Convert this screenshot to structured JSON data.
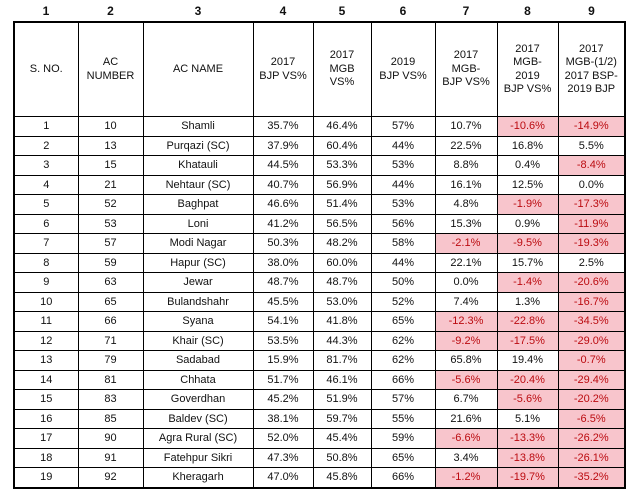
{
  "colors": {
    "highlight_fill": "#F8C5CC",
    "highlight_text": "#BB0B10",
    "grid_line": "#000000",
    "text": "#111111"
  },
  "chart_data": {
    "type": "table",
    "title": "",
    "column_numbers": [
      "1",
      "2",
      "3",
      "4",
      "5",
      "6",
      "7",
      "8",
      "9"
    ],
    "columns": [
      "S. NO.",
      "AC\nNUMBER",
      "AC NAME",
      "2017\nBJP VS%",
      "2017\nMGB\nVS%",
      "2019\nBJP VS%",
      "2017\nMGB-\nBJP VS%",
      "2017\nMGB-\n2019\nBJP VS%",
      "2017\nMGB-(1/2)\n2017 BSP-\n2019 BJP"
    ],
    "rows": [
      [
        "1",
        "10",
        "Shamli",
        "35.7%",
        "46.4%",
        "57%",
        "10.7%",
        "-10.6%",
        "-14.9%"
      ],
      [
        "2",
        "13",
        "Purqazi (SC)",
        "37.9%",
        "60.4%",
        "44%",
        "22.5%",
        "16.8%",
        "5.5%"
      ],
      [
        "3",
        "15",
        "Khatauli",
        "44.5%",
        "53.3%",
        "53%",
        "8.8%",
        "0.4%",
        "-8.4%"
      ],
      [
        "4",
        "21",
        "Nehtaur (SC)",
        "40.7%",
        "56.9%",
        "44%",
        "16.1%",
        "12.5%",
        "0.0%"
      ],
      [
        "5",
        "52",
        "Baghpat",
        "46.6%",
        "51.4%",
        "53%",
        "4.8%",
        "-1.9%",
        "-17.3%"
      ],
      [
        "6",
        "53",
        "Loni",
        "41.2%",
        "56.5%",
        "56%",
        "15.3%",
        "0.9%",
        "-11.9%"
      ],
      [
        "7",
        "57",
        "Modi Nagar",
        "50.3%",
        "48.2%",
        "58%",
        "-2.1%",
        "-9.5%",
        "-19.3%"
      ],
      [
        "8",
        "59",
        "Hapur (SC)",
        "38.0%",
        "60.0%",
        "44%",
        "22.1%",
        "15.7%",
        "2.5%"
      ],
      [
        "9",
        "63",
        "Jewar",
        "48.7%",
        "48.7%",
        "50%",
        "0.0%",
        "-1.4%",
        "-20.6%"
      ],
      [
        "10",
        "65",
        "Bulandshahr",
        "45.5%",
        "53.0%",
        "52%",
        "7.4%",
        "1.3%",
        "-16.7%"
      ],
      [
        "11",
        "66",
        "Syana",
        "54.1%",
        "41.8%",
        "65%",
        "-12.3%",
        "-22.8%",
        "-34.5%"
      ],
      [
        "12",
        "71",
        "Khair (SC)",
        "53.5%",
        "44.3%",
        "62%",
        "-9.2%",
        "-17.5%",
        "-29.0%"
      ],
      [
        "13",
        "79",
        "Sadabad",
        "15.9%",
        "81.7%",
        "62%",
        "65.8%",
        "19.4%",
        "-0.7%"
      ],
      [
        "14",
        "81",
        "Chhata",
        "51.7%",
        "46.1%",
        "66%",
        "-5.6%",
        "-20.4%",
        "-29.4%"
      ],
      [
        "15",
        "83",
        "Goverdhan",
        "45.2%",
        "51.9%",
        "57%",
        "6.7%",
        "-5.6%",
        "-20.2%"
      ],
      [
        "16",
        "85",
        "Baldev (SC)",
        "38.1%",
        "59.7%",
        "55%",
        "21.6%",
        "5.1%",
        "-6.5%"
      ],
      [
        "17",
        "90",
        "Agra Rural (SC)",
        "52.0%",
        "45.4%",
        "59%",
        "-6.6%",
        "-13.3%",
        "-26.2%"
      ],
      [
        "18",
        "91",
        "Fatehpur Sikri",
        "47.3%",
        "50.8%",
        "65%",
        "3.4%",
        "-13.8%",
        "-26.1%"
      ],
      [
        "19",
        "92",
        "Kheragarh",
        "47.0%",
        "45.8%",
        "66%",
        "-1.2%",
        "-19.7%",
        "-35.2%"
      ]
    ],
    "highlight_rule": "negative values shown with light red fill and dark red text"
  }
}
